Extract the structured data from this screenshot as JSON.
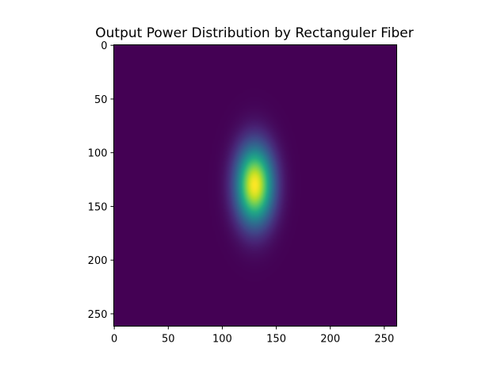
{
  "chart_data": {
    "type": "heatmap",
    "title": "Output Power Distribution by Rectanguler Fiber",
    "xlabel": "",
    "ylabel": "",
    "colormap": "viridis",
    "image_extent": {
      "x": [
        -0.5,
        261.5
      ],
      "y": [
        261.5,
        -0.5
      ]
    },
    "y_inverted": true,
    "x_ticks": [
      0,
      50,
      100,
      150,
      200,
      250
    ],
    "x_tick_labels": [
      "0",
      "50",
      "100",
      "150",
      "200",
      "250"
    ],
    "y_ticks": [
      0,
      50,
      100,
      150,
      200,
      250
    ],
    "y_tick_labels": [
      "0",
      "50",
      "100",
      "150",
      "200",
      "250"
    ],
    "distribution": {
      "shape": "elliptical gaussian spot",
      "center_x": 130,
      "center_y": 130,
      "sigma_x": 12,
      "sigma_y": 25,
      "peak": 1.0,
      "background": 0.0
    },
    "grid": false,
    "legend": "none"
  },
  "colors": {
    "background": "#ffffff",
    "axis": "#000000",
    "colormap_low": "#440154",
    "colormap_high": "#fde725"
  }
}
